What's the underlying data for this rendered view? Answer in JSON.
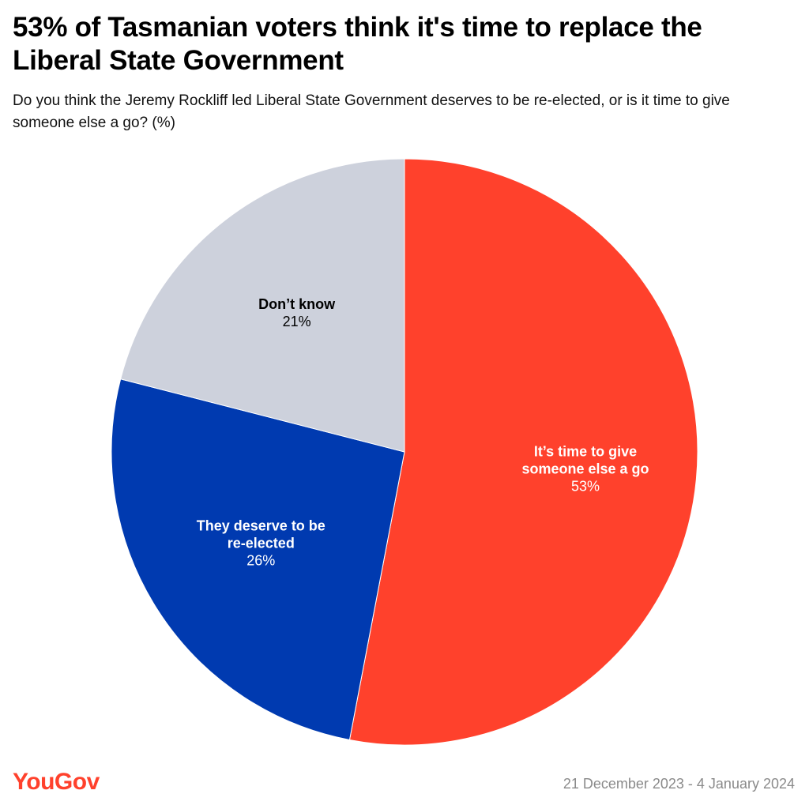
{
  "header": {
    "title": "53% of Tasmanian voters think it's time to replace the Liberal State Government",
    "subtitle": "Do you think the Jeremy Rockliff led Liberal State Government deserves to be re-elected, or is it time to give someone else a go? (%)"
  },
  "chart_data": {
    "type": "pie",
    "title": "53% of Tasmanian voters think it's time to replace the Liberal State Government",
    "subtitle": "Do you think the Jeremy Rockliff led Liberal State Government deserves to be re-elected, or is it time to give someone else a go? (%)",
    "slices": [
      {
        "label_lines": [
          "It’s time to give",
          "someone else a go"
        ],
        "value": 53,
        "value_label": "53%",
        "color": "#ff412c",
        "text_color": "#ffffff"
      },
      {
        "label_lines": [
          "They deserve to be",
          "re-elected"
        ],
        "value": 26,
        "value_label": "26%",
        "color": "#003ab0",
        "text_color": "#ffffff"
      },
      {
        "label_lines": [
          "Don’t know"
        ],
        "value": 21,
        "value_label": "21%",
        "color": "#cdd1dc",
        "text_color": "#000000"
      }
    ],
    "start_angle": "12 o'clock",
    "direction": "clockwise",
    "legend": "none (direct labels)"
  },
  "footer": {
    "logo_text": "YouGov",
    "logo_color": "#ff412c",
    "date_range": "21 December 2023 - 4 January 2024"
  }
}
